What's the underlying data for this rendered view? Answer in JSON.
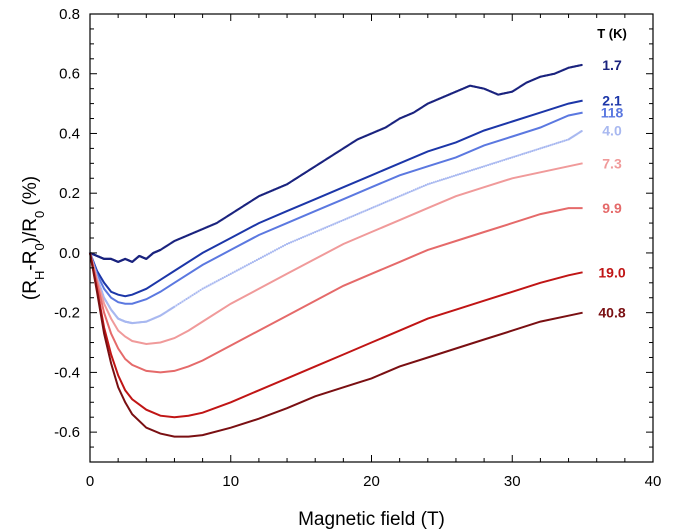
{
  "chart_data": {
    "type": "line",
    "xlabel": "Magnetic field (T)",
    "ylabel_parts": [
      "(R",
      "H",
      "-R",
      "0",
      ")/R",
      "0",
      " (%)"
    ],
    "xlim": [
      0,
      40
    ],
    "ylim": [
      -0.7,
      0.8
    ],
    "xticks": [
      0,
      10,
      20,
      30,
      40
    ],
    "yticks": [
      -0.6,
      -0.4,
      -0.2,
      0.0,
      0.2,
      0.4,
      0.6,
      0.8
    ],
    "ytick_labels": [
      "-0.6",
      "-0.4",
      "-0.2",
      "0.0",
      "0.2",
      "0.4",
      "0.6",
      "0.8"
    ],
    "xtick_labels": [
      "0",
      "10",
      "20",
      "30",
      "40"
    ],
    "legend_title": "T (K)",
    "grid": false,
    "series": [
      {
        "name": "1.7",
        "color": "#1a237e",
        "style": "dots",
        "x": [
          0,
          0.5,
          1,
          1.5,
          2,
          2.5,
          3,
          3.5,
          4,
          4.5,
          5,
          6,
          7,
          8,
          9,
          10,
          11,
          12,
          13,
          14,
          15,
          16,
          17,
          18,
          19,
          20,
          21,
          22,
          23,
          24,
          25,
          26,
          27,
          28,
          29,
          30,
          31,
          32,
          33,
          34,
          35
        ],
        "y": [
          0.0,
          -0.01,
          -0.02,
          -0.02,
          -0.03,
          -0.02,
          -0.03,
          -0.01,
          -0.02,
          0.0,
          0.01,
          0.04,
          0.06,
          0.08,
          0.1,
          0.13,
          0.16,
          0.19,
          0.21,
          0.23,
          0.26,
          0.29,
          0.32,
          0.35,
          0.38,
          0.4,
          0.42,
          0.45,
          0.47,
          0.5,
          0.52,
          0.54,
          0.56,
          0.55,
          0.53,
          0.54,
          0.57,
          0.59,
          0.6,
          0.62,
          0.63
        ]
      },
      {
        "name": "2.1",
        "color": "#1c36a8",
        "style": "line",
        "x": [
          0,
          0.5,
          1,
          1.5,
          2,
          2.5,
          3,
          4,
          5,
          6,
          8,
          10,
          12,
          14,
          16,
          18,
          20,
          22,
          24,
          26,
          28,
          30,
          32,
          34,
          35
        ],
        "y": [
          0.0,
          -0.06,
          -0.1,
          -0.13,
          -0.14,
          -0.145,
          -0.14,
          -0.12,
          -0.09,
          -0.06,
          0.0,
          0.05,
          0.1,
          0.14,
          0.18,
          0.22,
          0.26,
          0.3,
          0.34,
          0.37,
          0.41,
          0.44,
          0.47,
          0.5,
          0.51
        ]
      },
      {
        "name": "118",
        "color": "#5b78e0",
        "style": "line",
        "x": [
          0,
          0.5,
          1,
          1.5,
          2,
          2.5,
          3,
          4,
          5,
          6,
          8,
          10,
          12,
          14,
          16,
          18,
          20,
          22,
          24,
          26,
          28,
          30,
          32,
          34,
          35
        ],
        "y": [
          0.0,
          -0.07,
          -0.12,
          -0.15,
          -0.165,
          -0.17,
          -0.17,
          -0.155,
          -0.13,
          -0.1,
          -0.04,
          0.01,
          0.06,
          0.1,
          0.14,
          0.18,
          0.22,
          0.26,
          0.29,
          0.32,
          0.36,
          0.39,
          0.42,
          0.46,
          0.47
        ]
      },
      {
        "name": "4.0",
        "color": "#a8b8f0",
        "style": "dots",
        "x": [
          0,
          0.5,
          1,
          1.5,
          2,
          2.5,
          3,
          4,
          5,
          6,
          8,
          10,
          12,
          14,
          16,
          18,
          20,
          22,
          24,
          26,
          28,
          30,
          32,
          34,
          35
        ],
        "y": [
          0.0,
          -0.08,
          -0.15,
          -0.19,
          -0.22,
          -0.23,
          -0.235,
          -0.23,
          -0.21,
          -0.18,
          -0.12,
          -0.07,
          -0.02,
          0.03,
          0.07,
          0.11,
          0.15,
          0.19,
          0.23,
          0.26,
          0.29,
          0.32,
          0.35,
          0.38,
          0.41
        ]
      },
      {
        "name": "7.3",
        "color": "#f09a9a",
        "style": "line",
        "x": [
          0,
          0.5,
          1,
          1.5,
          2,
          2.5,
          3,
          4,
          5,
          6,
          7,
          8,
          10,
          12,
          14,
          16,
          18,
          20,
          22,
          24,
          26,
          28,
          30,
          32,
          34,
          35
        ],
        "y": [
          0.0,
          -0.09,
          -0.17,
          -0.22,
          -0.26,
          -0.28,
          -0.295,
          -0.305,
          -0.3,
          -0.285,
          -0.26,
          -0.23,
          -0.17,
          -0.12,
          -0.07,
          -0.02,
          0.03,
          0.07,
          0.11,
          0.15,
          0.19,
          0.22,
          0.25,
          0.27,
          0.29,
          0.3
        ]
      },
      {
        "name": "9.9",
        "color": "#e56a6a",
        "style": "line",
        "x": [
          0,
          0.5,
          1,
          1.5,
          2,
          2.5,
          3,
          4,
          5,
          6,
          7,
          8,
          10,
          12,
          14,
          16,
          18,
          20,
          22,
          24,
          26,
          28,
          30,
          32,
          34,
          35
        ],
        "y": [
          0.0,
          -0.1,
          -0.2,
          -0.27,
          -0.32,
          -0.355,
          -0.375,
          -0.395,
          -0.4,
          -0.395,
          -0.38,
          -0.36,
          -0.31,
          -0.26,
          -0.21,
          -0.16,
          -0.11,
          -0.07,
          -0.03,
          0.01,
          0.04,
          0.07,
          0.1,
          0.13,
          0.15,
          0.15
        ]
      },
      {
        "name": "19.0",
        "color": "#c01515",
        "style": "line",
        "x": [
          0,
          0.5,
          1,
          1.5,
          2,
          2.5,
          3,
          4,
          5,
          6,
          7,
          8,
          10,
          12,
          14,
          16,
          18,
          20,
          22,
          24,
          26,
          28,
          30,
          32,
          34,
          35
        ],
        "y": [
          0.0,
          -0.12,
          -0.25,
          -0.34,
          -0.41,
          -0.46,
          -0.49,
          -0.525,
          -0.545,
          -0.55,
          -0.545,
          -0.535,
          -0.5,
          -0.46,
          -0.42,
          -0.38,
          -0.34,
          -0.3,
          -0.26,
          -0.22,
          -0.19,
          -0.16,
          -0.13,
          -0.1,
          -0.075,
          -0.065
        ]
      },
      {
        "name": "40.8",
        "color": "#7a0f12",
        "style": "line",
        "x": [
          0,
          0.5,
          1,
          1.5,
          2,
          2.5,
          3,
          4,
          5,
          6,
          7,
          8,
          10,
          12,
          14,
          16,
          18,
          20,
          22,
          24,
          26,
          28,
          30,
          32,
          34,
          35
        ],
        "y": [
          0.0,
          -0.13,
          -0.27,
          -0.37,
          -0.45,
          -0.5,
          -0.54,
          -0.585,
          -0.605,
          -0.615,
          -0.615,
          -0.61,
          -0.585,
          -0.555,
          -0.52,
          -0.48,
          -0.45,
          -0.42,
          -0.38,
          -0.35,
          -0.32,
          -0.29,
          -0.26,
          -0.23,
          -0.21,
          -0.2
        ]
      }
    ]
  }
}
